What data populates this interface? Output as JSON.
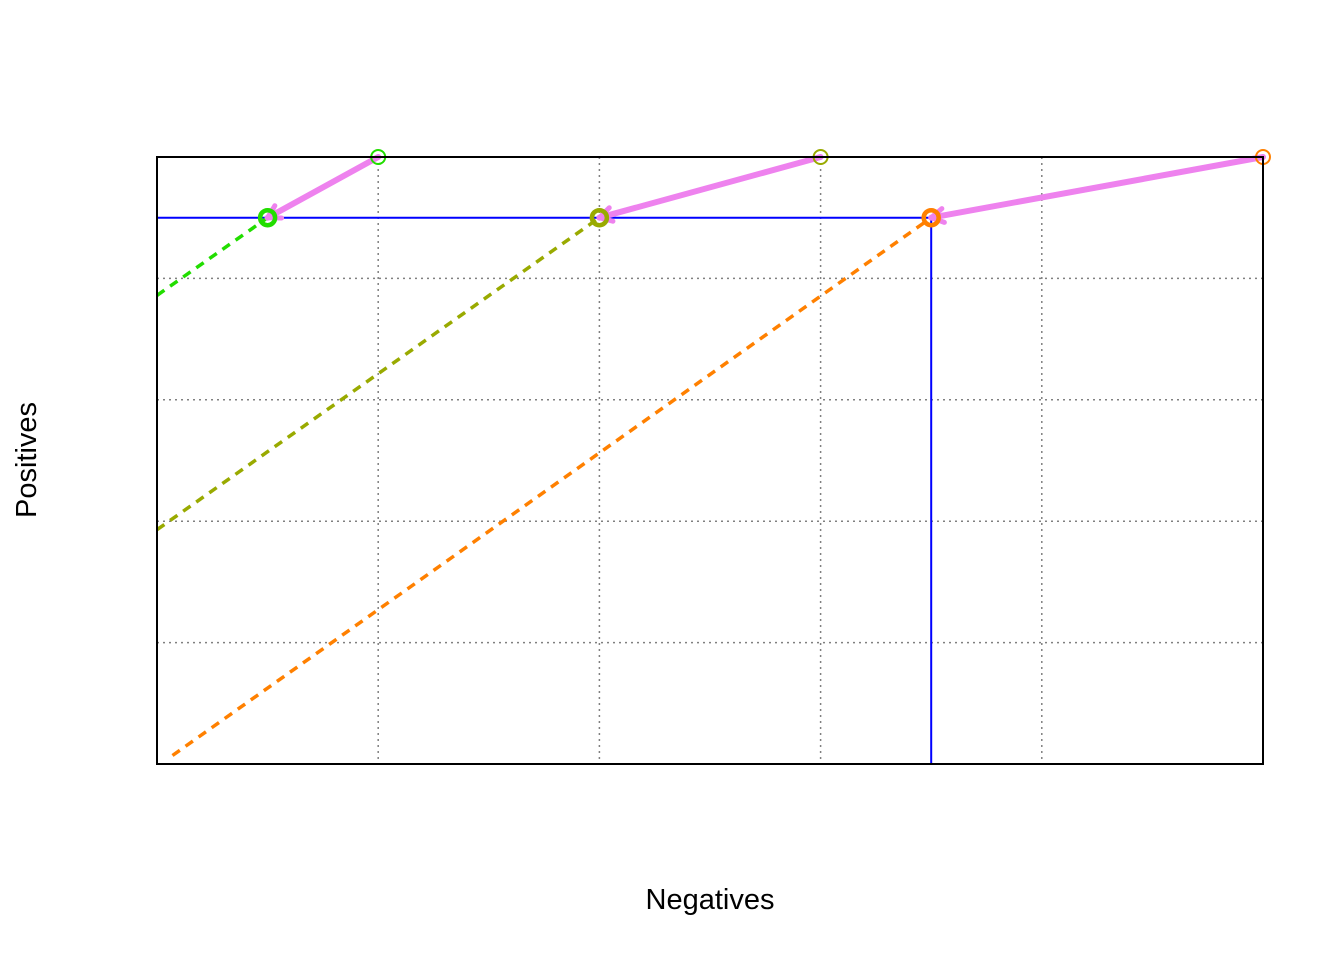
{
  "chart_data": {
    "type": "line",
    "title": "",
    "xlabel": "Negatives",
    "ylabel": "Positives",
    "xlim": [
      0,
      5
    ],
    "ylim": [
      0,
      5
    ],
    "grid": true,
    "x_grid": [
      1,
      2,
      3,
      4
    ],
    "y_grid": [
      1,
      2,
      3,
      4
    ],
    "boundary": {
      "color": "#0000ff",
      "points": [
        [
          0,
          0
        ],
        [
          0,
          4.5
        ],
        [
          3.5,
          4.5
        ],
        [
          3.5,
          0
        ],
        [
          0,
          0
        ]
      ]
    },
    "isocost_lines": [
      {
        "color": "#22dd00",
        "points": [
          [
            0,
            3.86
          ],
          [
            0.5,
            4.5
          ]
        ]
      },
      {
        "color": "#99aa00",
        "points": [
          [
            0,
            1.93
          ],
          [
            2,
            4.5
          ]
        ]
      },
      {
        "color": "#ff8000",
        "points": [
          [
            0.07,
            0.07
          ],
          [
            3.5,
            4.5
          ]
        ]
      }
    ],
    "moves": [
      {
        "color": "#ee82ee",
        "from": [
          1,
          5
        ],
        "to": [
          0.5,
          4.5
        ]
      },
      {
        "color": "#ee82ee",
        "from": [
          3,
          5
        ],
        "to": [
          2,
          4.5
        ]
      },
      {
        "color": "#ee82ee",
        "from": [
          5,
          5
        ],
        "to": [
          3.5,
          4.5
        ]
      }
    ],
    "points": [
      {
        "x": 0.5,
        "y": 4.5,
        "color": "#22dd00"
      },
      {
        "x": 2,
        "y": 4.5,
        "color": "#99aa00"
      },
      {
        "x": 3.5,
        "y": 4.5,
        "color": "#ff8000"
      },
      {
        "x": 1,
        "y": 5,
        "color": "#22dd00",
        "partial": true
      },
      {
        "x": 3,
        "y": 5,
        "color": "#99aa00",
        "partial": true
      },
      {
        "x": 5,
        "y": 5,
        "color": "#ff8000",
        "partial": true
      }
    ]
  }
}
